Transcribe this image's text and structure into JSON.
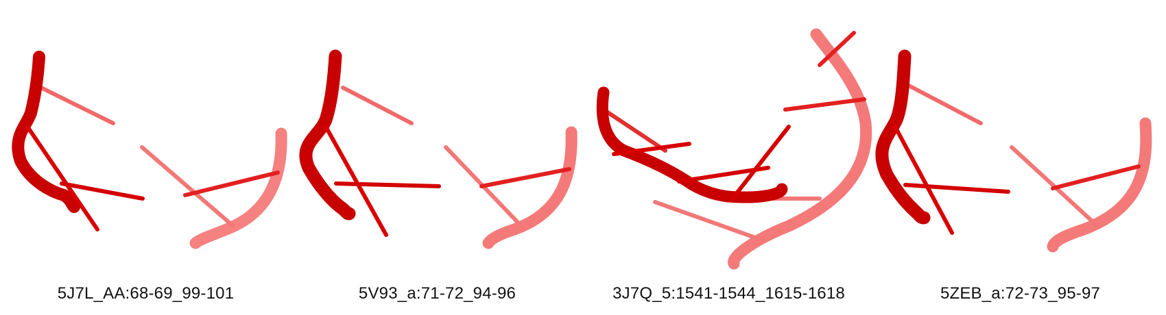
{
  "colors": {
    "strand_front": "#d40000",
    "strand_back": "#f06a6a",
    "background": "#ffffff"
  },
  "panels": [
    {
      "caption": "5J7L_AA:68-69_99-101"
    },
    {
      "caption": "5V93_a:71-72_94-96"
    },
    {
      "caption": "3J7Q_5:1541-1544_1615-1618"
    },
    {
      "caption": "5ZEB_a:72-73_95-97"
    }
  ]
}
